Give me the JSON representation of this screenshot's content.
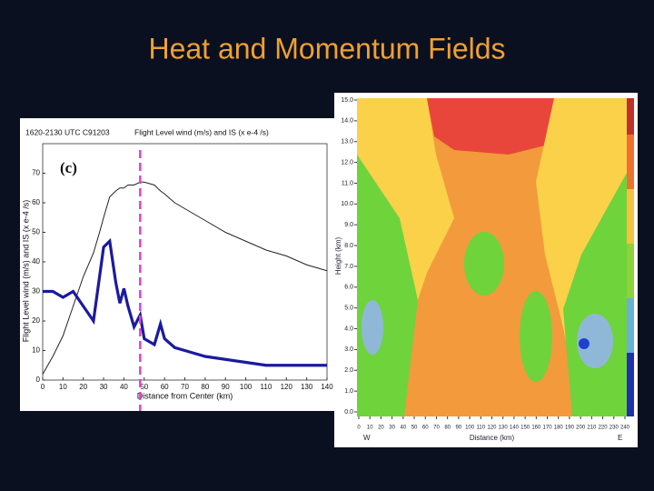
{
  "title": "Heat and Momentum Fields",
  "chart_data": [
    {
      "type": "line",
      "header": "1620-2130 UTC C91203",
      "title": "Flight Level wind (m/s) and IS (x e-4 /s)",
      "panel": "(c)",
      "ylabel": "Flight Level wind (m/s) and IS (x e-4 /s)",
      "xlabel": "Distance from Center (km)",
      "x": [
        0,
        5,
        10,
        15,
        20,
        25,
        28,
        30,
        33,
        36,
        38,
        40,
        42,
        45,
        48,
        50,
        55,
        58,
        60,
        65,
        70,
        80,
        90,
        100,
        110,
        120,
        130,
        140
      ],
      "series": [
        {
          "name": "Flight Level wind",
          "color": "#222222",
          "values": [
            2,
            8,
            15,
            25,
            35,
            43,
            50,
            55,
            62,
            64,
            65,
            65,
            66,
            66,
            67,
            67,
            66,
            64,
            63,
            60,
            58,
            54,
            50,
            47,
            44,
            42,
            39,
            37
          ]
        },
        {
          "name": "IS",
          "color": "#1a1aa0",
          "values": [
            30,
            30,
            28,
            30,
            25,
            20,
            35,
            45,
            47,
            33,
            26,
            31,
            25,
            18,
            22,
            14,
            12,
            19,
            14,
            11,
            10,
            8,
            7,
            6,
            5,
            5,
            5,
            5
          ]
        }
      ],
      "marker_x": 48,
      "marker_color": "#e040d0",
      "xlim": [
        0,
        140
      ],
      "xticks": [
        0,
        10,
        20,
        30,
        40,
        50,
        60,
        70,
        80,
        90,
        100,
        110,
        120,
        130,
        140
      ],
      "ylim": [
        0,
        80
      ],
      "yticks": [
        0,
        10,
        20,
        30,
        40,
        50,
        60,
        70
      ]
    },
    {
      "type": "contour",
      "ylabel": "Height (km)",
      "xlabel": "Distance (km)",
      "left_label": "W",
      "right_label": "E",
      "xlim": [
        0,
        240
      ],
      "xticks": [
        0,
        10,
        20,
        30,
        40,
        50,
        60,
        70,
        80,
        90,
        100,
        110,
        120,
        130,
        140,
        150,
        160,
        170,
        180,
        190,
        200,
        210,
        220,
        230,
        240
      ],
      "ylim": [
        0,
        15
      ],
      "yticks": [
        {
          "value": 0,
          "label": "0.0"
        },
        {
          "value": 1,
          "label": "1.0"
        },
        {
          "value": 2,
          "label": "2.0"
        },
        {
          "value": 3,
          "label": "3.0"
        },
        {
          "value": 4,
          "label": "4.0"
        },
        {
          "value": 5,
          "label": "5.0"
        },
        {
          "value": 6,
          "label": "6.0"
        },
        {
          "value": 7,
          "label": "7.0"
        },
        {
          "value": 8,
          "label": "8.0"
        },
        {
          "value": 9,
          "label": "9.0"
        },
        {
          "value": 10,
          "label": "10.0"
        },
        {
          "value": 11,
          "label": "11.0"
        },
        {
          "value": 12,
          "label": "12.0"
        },
        {
          "value": 13,
          "label": "13.0"
        },
        {
          "value": 14,
          "label": "14.0"
        },
        {
          "value": 15,
          "label": "15.0"
        }
      ]
    }
  ]
}
